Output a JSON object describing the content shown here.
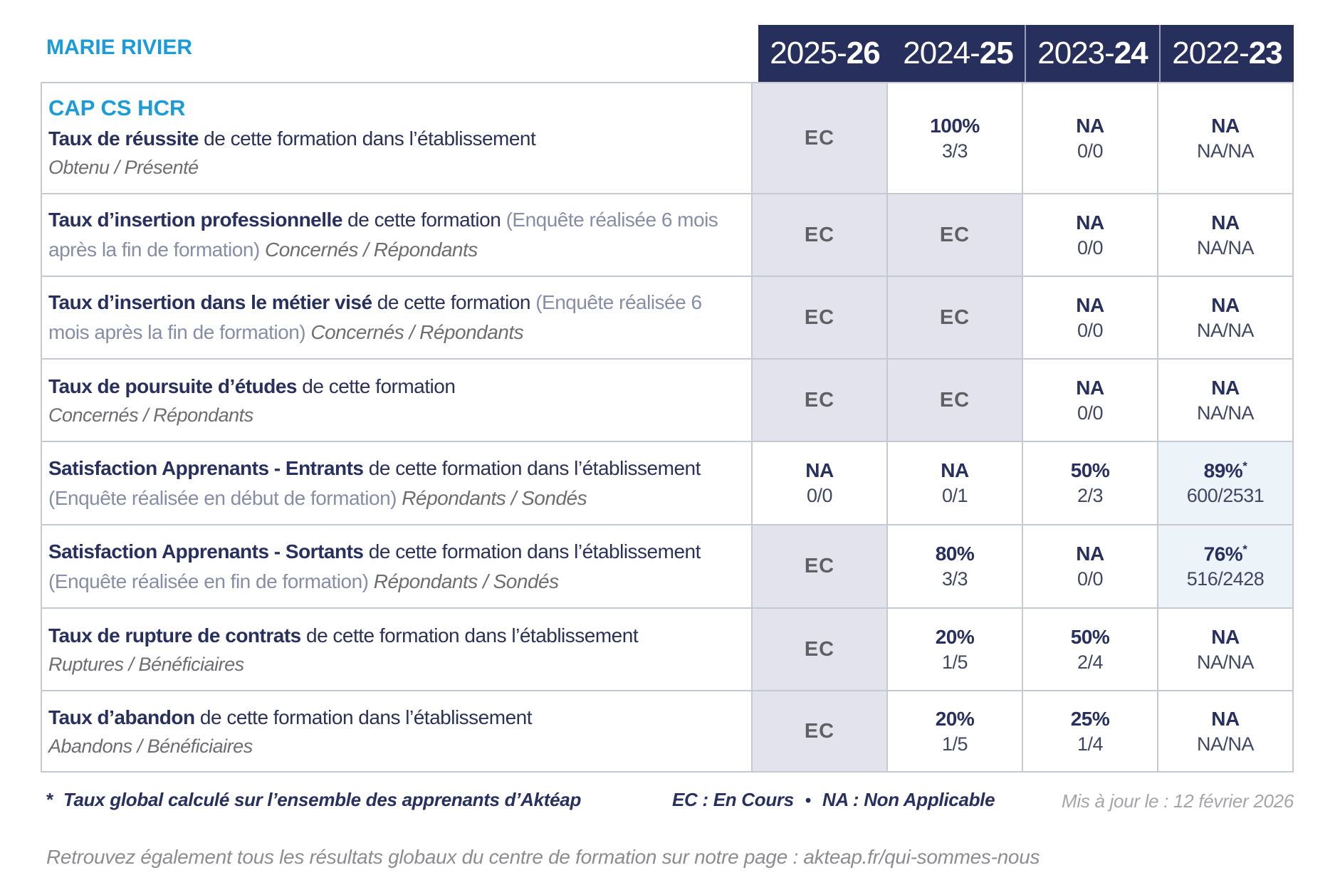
{
  "page": {
    "school_name": "MARIE RIVIER"
  },
  "colors": {
    "accent_blue": "#1b9cd9",
    "navy": "#272f5d",
    "ec_cell_bg": "#e3e3ed",
    "highlight_cell_bg": "#ecf4fa",
    "grid_line": "#c6c8d3"
  },
  "header": {
    "years": [
      {
        "prefix": "2025-",
        "bold": "26"
      },
      {
        "prefix": "2024-",
        "bold": "25"
      },
      {
        "prefix": "2023-",
        "bold": "24"
      },
      {
        "prefix": "2022-",
        "bold": "23"
      }
    ]
  },
  "table": {
    "rows": [
      {
        "program": "CAP CS HCR",
        "title": "Taux de réussite",
        "text": " de cette formation dans l’établissement",
        "subtitle": "Obtenu / Présenté",
        "subtitle_own_line": true,
        "cells": [
          {
            "type": "ec",
            "value": "EC"
          },
          {
            "type": "value",
            "value": "100%",
            "detail": "3/3"
          },
          {
            "type": "value",
            "value": "NA",
            "detail": "0/0"
          },
          {
            "type": "value",
            "value": "NA",
            "detail": "NA/NA"
          }
        ]
      },
      {
        "title": "Taux d’insertion professionnelle",
        "text": " de cette formation ",
        "note": "(Enquête réalisée 6 mois après la fin de formation) ",
        "subtitle": "Concernés / Répondants",
        "subtitle_own_line": false,
        "cells": [
          {
            "type": "ec",
            "value": "EC"
          },
          {
            "type": "ec",
            "value": "EC"
          },
          {
            "type": "value",
            "value": "NA",
            "detail": "0/0"
          },
          {
            "type": "value",
            "value": "NA",
            "detail": "NA/NA"
          }
        ]
      },
      {
        "title": "Taux d’insertion dans le métier visé",
        "text": " de cette formation ",
        "note": "(Enquête réalisée 6 mois après la fin de formation) ",
        "subtitle": "Concernés / Répondants",
        "subtitle_own_line": false,
        "cells": [
          {
            "type": "ec",
            "value": "EC"
          },
          {
            "type": "ec",
            "value": "EC"
          },
          {
            "type": "value",
            "value": "NA",
            "detail": "0/0"
          },
          {
            "type": "value",
            "value": "NA",
            "detail": "NA/NA"
          }
        ]
      },
      {
        "title": "Taux de poursuite d’études",
        "text": " de cette formation",
        "subtitle": "Concernés / Répondants",
        "subtitle_own_line": true,
        "cells": [
          {
            "type": "ec",
            "value": "EC"
          },
          {
            "type": "ec",
            "value": "EC"
          },
          {
            "type": "value",
            "value": "NA",
            "detail": "0/0"
          },
          {
            "type": "value",
            "value": "NA",
            "detail": "NA/NA"
          }
        ]
      },
      {
        "title": "Satisfaction Apprenants - Entrants",
        "text": " de cette formation dans l’établissement ",
        "note": "(Enquête réalisée en début de formation) ",
        "subtitle": "Répondants / Sondés",
        "subtitle_own_line": false,
        "cells": [
          {
            "type": "value",
            "value": "NA",
            "detail": "0/0"
          },
          {
            "type": "value",
            "value": "NA",
            "detail": "0/1"
          },
          {
            "type": "value",
            "value": "50%",
            "detail": "2/3"
          },
          {
            "type": "value",
            "value": "89%",
            "star": "*",
            "detail": "600/2531",
            "highlight": "blue"
          }
        ]
      },
      {
        "title": "Satisfaction Apprenants - Sortants",
        "text": " de cette formation dans l’établissement ",
        "note": "(Enquête réalisée en fin de formation) ",
        "subtitle": "Répondants / Sondés",
        "subtitle_own_line": false,
        "cells": [
          {
            "type": "ec",
            "value": "EC"
          },
          {
            "type": "value",
            "value": "80%",
            "detail": "3/3"
          },
          {
            "type": "value",
            "value": "NA",
            "detail": "0/0"
          },
          {
            "type": "value",
            "value": "76%",
            "star": "*",
            "detail": "516/2428",
            "highlight": "blue"
          }
        ]
      },
      {
        "title": "Taux de rupture de contrats",
        "text": " de cette formation dans l’établissement",
        "subtitle": "Ruptures / Bénéficiaires",
        "subtitle_own_line": true,
        "cells": [
          {
            "type": "ec",
            "value": "EC"
          },
          {
            "type": "value",
            "value": "20%",
            "detail": "1/5"
          },
          {
            "type": "value",
            "value": "50%",
            "detail": "2/4"
          },
          {
            "type": "value",
            "value": "NA",
            "detail": "NA/NA"
          }
        ]
      },
      {
        "title": "Taux d’abandon",
        "text": " de cette formation dans l’établissement",
        "subtitle": "Abandons / Bénéficiaires",
        "subtitle_own_line": true,
        "cells": [
          {
            "type": "ec",
            "value": "EC"
          },
          {
            "type": "value",
            "value": "20%",
            "detail": "1/5"
          },
          {
            "type": "value",
            "value": "25%",
            "detail": "1/4"
          },
          {
            "type": "value",
            "value": "NA",
            "detail": "NA/NA"
          }
        ]
      }
    ]
  },
  "footer": {
    "marker": "*",
    "footnote": "Taux global calculé sur l’ensemble des apprenants d’Aktéap",
    "legend_ec": "EC : En Cours",
    "bullet": "•",
    "legend_na": "NA : Non Applicable",
    "updated": "Mis à jour le : 12 février 2026",
    "global_note": "Retrouvez également tous les résultats globaux du centre de formation sur notre page : akteap.fr/qui-sommes-nous"
  }
}
